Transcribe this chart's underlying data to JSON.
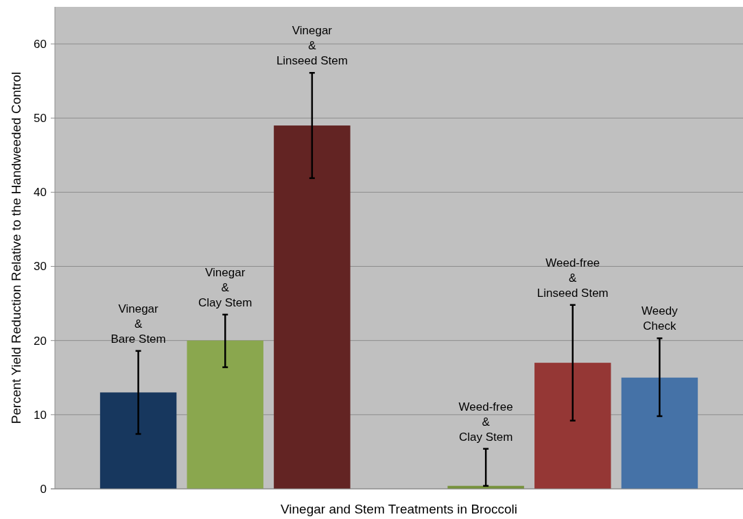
{
  "chart_data": {
    "type": "bar",
    "xlabel": "Vinegar and Stem Treatments in Broccoli",
    "ylabel": "Percent Yield Reduction Relative to the Handweeded Control",
    "categories": [
      "Vinegar\n&\nBare Stem",
      "Vinegar\n&\nClay Stem",
      "Vinegar\n&\nLinseed Stem",
      null,
      "Weed-free\n&\nClay Stem",
      "Weed-free\n&\nLinseed Stem",
      "Weedy\nCheck"
    ],
    "values": [
      13,
      20,
      49,
      null,
      0.4,
      17,
      15
    ],
    "colors": [
      "#17375e",
      "#8aa74e",
      "#632423",
      null,
      "#77933c",
      "#953735",
      "#4572a7"
    ],
    "errors": [
      [
        7.4,
        18.6
      ],
      [
        16.4,
        23.5
      ],
      [
        41.9,
        56.1
      ],
      null,
      [
        0.4,
        5.4
      ],
      [
        9.2,
        24.8
      ],
      [
        9.8,
        20.3
      ]
    ],
    "ylim": [
      0,
      65
    ],
    "yticks": [
      0,
      10,
      20,
      30,
      40,
      50,
      60
    ],
    "grid": "y"
  }
}
